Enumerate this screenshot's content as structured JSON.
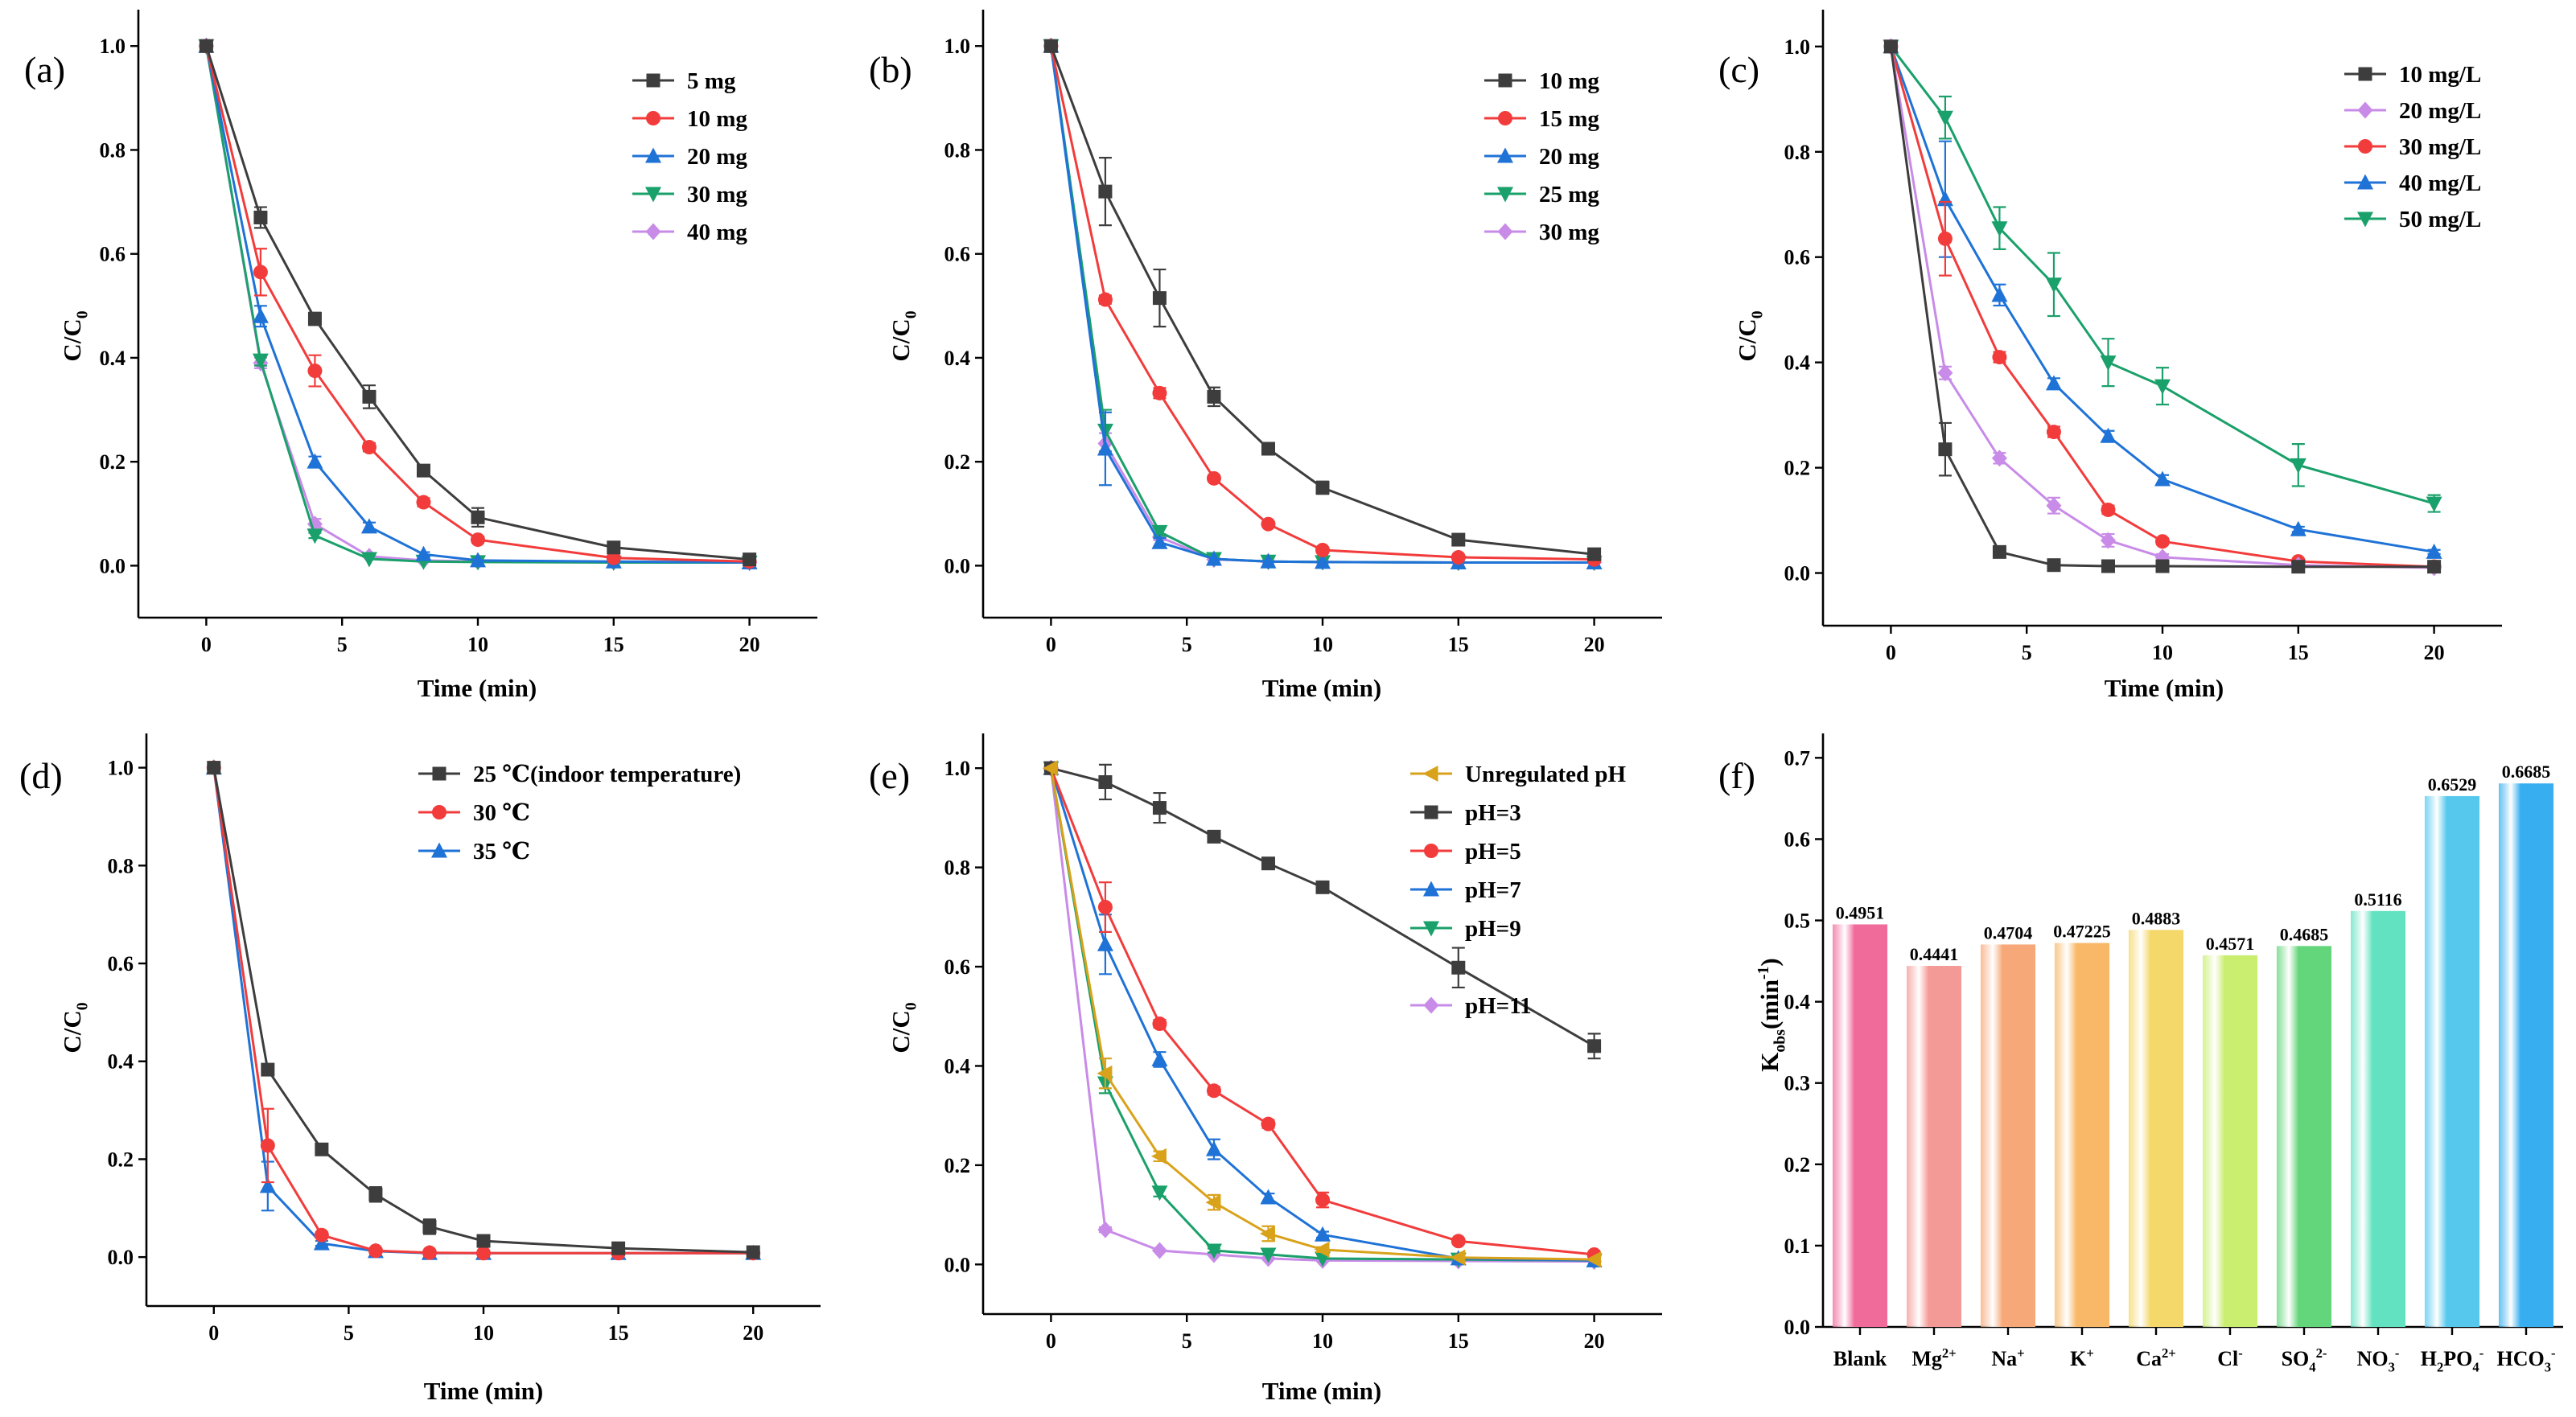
{
  "colors": {
    "black": "#3d3d3d",
    "red": "#f23c3c",
    "blue": "#1f72d6",
    "green": "#1aa06a",
    "violet": "#c88be8",
    "orange": "#d9a21b",
    "bars": [
      "#f06a9a",
      "#f49a96",
      "#f7a878",
      "#f8b868",
      "#f5d86a",
      "#c9ee70",
      "#63d57a",
      "#62e2c0",
      "#56c8ee",
      "#36aef0"
    ]
  },
  "chart_data": [
    {
      "panel": "(a)",
      "type": "line",
      "xlabel": "Time (min)",
      "ylabel": "C/C0",
      "xlim": [
        -2.5,
        22.5
      ],
      "ylim": [
        -0.1,
        1.07
      ],
      "xticks": [
        0,
        5,
        10,
        15,
        20
      ],
      "yticks": [
        0.0,
        0.2,
        0.4,
        0.6,
        0.8,
        1.0
      ],
      "x": [
        0,
        2,
        4,
        6,
        8,
        10,
        15,
        20
      ],
      "legend_position": "top-right",
      "series": [
        {
          "name": "5 mg",
          "color": "#3d3d3d",
          "marker": "square",
          "values": [
            1.0,
            0.67,
            0.475,
            0.325,
            0.183,
            0.093,
            0.035,
            0.012
          ],
          "errors": [
            0,
            0.02,
            0.012,
            0.022,
            0.01,
            0.018,
            0.005,
            0.006
          ]
        },
        {
          "name": "10 mg",
          "color": "#f23c3c",
          "marker": "circle",
          "values": [
            1.0,
            0.565,
            0.375,
            0.228,
            0.122,
            0.05,
            0.015,
            0.008
          ],
          "errors": [
            0,
            0.045,
            0.03,
            0.008,
            0.008,
            0.006,
            0.003,
            0.002
          ]
        },
        {
          "name": "20 mg",
          "color": "#1f72d6",
          "marker": "triangle-up",
          "values": [
            1.0,
            0.48,
            0.2,
            0.075,
            0.022,
            0.01,
            0.008,
            0.006
          ],
          "errors": [
            0,
            0.02,
            0.01,
            0.008,
            0.004,
            0.003,
            0.002,
            0.002
          ]
        },
        {
          "name": "30 mg",
          "color": "#1aa06a",
          "marker": "triangle-down",
          "values": [
            1.0,
            0.395,
            0.058,
            0.013,
            0.008,
            0.007,
            0.006,
            0.006
          ],
          "errors": [
            0,
            0.01,
            0.005,
            0.002,
            0.002,
            0.002,
            0.001,
            0.001
          ]
        },
        {
          "name": "40 mg",
          "color": "#c88be8",
          "marker": "diamond",
          "values": [
            1.0,
            0.39,
            0.08,
            0.018,
            0.01,
            0.008,
            0.007,
            0.006
          ],
          "errors": [
            0,
            0.01,
            0.01,
            0.003,
            0.002,
            0.002,
            0.001,
            0.001
          ]
        }
      ]
    },
    {
      "panel": "(b)",
      "type": "line",
      "xlabel": "Time (min)",
      "ylabel": "C/C0",
      "xlim": [
        -2.5,
        22.5
      ],
      "ylim": [
        -0.1,
        1.07
      ],
      "xticks": [
        0,
        5,
        10,
        15,
        20
      ],
      "yticks": [
        0.0,
        0.2,
        0.4,
        0.6,
        0.8,
        1.0
      ],
      "x": [
        0,
        2,
        4,
        6,
        8,
        10,
        15,
        20
      ],
      "legend_position": "top-right",
      "series": [
        {
          "name": "10 mg",
          "color": "#3d3d3d",
          "marker": "square",
          "values": [
            1.0,
            0.72,
            0.515,
            0.325,
            0.225,
            0.15,
            0.05,
            0.022
          ],
          "errors": [
            0,
            0.065,
            0.055,
            0.018,
            0.008,
            0.012,
            0.005,
            0.004
          ]
        },
        {
          "name": "15 mg",
          "color": "#f23c3c",
          "marker": "circle",
          "values": [
            1.0,
            0.512,
            0.332,
            0.168,
            0.08,
            0.03,
            0.016,
            0.012
          ],
          "errors": [
            0,
            0.008,
            0.01,
            0.006,
            0.004,
            0.003,
            0.002,
            0.002
          ]
        },
        {
          "name": "20 mg",
          "color": "#1f72d6",
          "marker": "triangle-up",
          "values": [
            1.0,
            0.225,
            0.045,
            0.013,
            0.008,
            0.007,
            0.006,
            0.006
          ],
          "errors": [
            0,
            0.07,
            0.008,
            0.002,
            0.002,
            0.002,
            0.001,
            0.001
          ]
        },
        {
          "name": "25 mg",
          "color": "#1aa06a",
          "marker": "triangle-down",
          "values": [
            1.0,
            0.26,
            0.065,
            0.013,
            0.008,
            0.007,
            0.006,
            0.006
          ],
          "errors": [
            0,
            0.04,
            0.008,
            0.002,
            0.002,
            0.002,
            0.001,
            0.001
          ]
        },
        {
          "name": "30 mg",
          "color": "#c88be8",
          "marker": "diamond",
          "values": [
            1.0,
            0.235,
            0.055,
            0.012,
            0.008,
            0.007,
            0.006,
            0.006
          ],
          "errors": [
            0,
            0.02,
            0.006,
            0.002,
            0.002,
            0.002,
            0.001,
            0.001
          ]
        }
      ]
    },
    {
      "panel": "(c)",
      "type": "line",
      "xlabel": "Time (min)",
      "ylabel": "C/C0",
      "xlim": [
        -2.5,
        22.5
      ],
      "ylim": [
        -0.1,
        1.07
      ],
      "xticks": [
        0,
        5,
        10,
        15,
        20
      ],
      "yticks": [
        0.0,
        0.2,
        0.4,
        0.6,
        0.8,
        1.0
      ],
      "x": [
        0,
        2,
        4,
        6,
        8,
        10,
        15,
        20
      ],
      "legend_position": "top-right",
      "series": [
        {
          "name": "10 mg/L",
          "color": "#3d3d3d",
          "marker": "square",
          "values": [
            1.0,
            0.235,
            0.04,
            0.015,
            0.013,
            0.013,
            0.012,
            0.012
          ],
          "errors": [
            0,
            0.05,
            0.006,
            0.002,
            0.002,
            0.002,
            0.002,
            0.002
          ]
        },
        {
          "name": "20 mg/L",
          "color": "#c88be8",
          "marker": "diamond",
          "values": [
            1.0,
            0.38,
            0.218,
            0.128,
            0.062,
            0.03,
            0.015,
            0.01
          ],
          "errors": [
            0,
            0.012,
            0.01,
            0.015,
            0.012,
            0.006,
            0.003,
            0.002
          ]
        },
        {
          "name": "30 mg/L",
          "color": "#f23c3c",
          "marker": "circle",
          "values": [
            1.0,
            0.635,
            0.41,
            0.268,
            0.12,
            0.06,
            0.022,
            0.012
          ],
          "errors": [
            0,
            0.07,
            0.01,
            0.01,
            0.008,
            0.006,
            0.003,
            0.002
          ]
        },
        {
          "name": "40 mg/L",
          "color": "#1f72d6",
          "marker": "triangle-up",
          "values": [
            1.0,
            0.71,
            0.528,
            0.36,
            0.26,
            0.178,
            0.083,
            0.04
          ],
          "errors": [
            0,
            0.11,
            0.02,
            0.01,
            0.01,
            0.008,
            0.005,
            0.004
          ]
        },
        {
          "name": "50 mg/L",
          "color": "#1aa06a",
          "marker": "triangle-down",
          "values": [
            1.0,
            0.865,
            0.655,
            0.548,
            0.4,
            0.355,
            0.205,
            0.132
          ],
          "errors": [
            0,
            0.04,
            0.04,
            0.06,
            0.045,
            0.035,
            0.04,
            0.016
          ]
        }
      ]
    },
    {
      "panel": "(d)",
      "type": "line",
      "xlabel": "Time (min)",
      "ylabel": "C/C0",
      "xlim": [
        -2.5,
        22.5
      ],
      "ylim": [
        -0.1,
        1.07
      ],
      "xticks": [
        0,
        5,
        10,
        15,
        20
      ],
      "yticks": [
        0.0,
        0.2,
        0.4,
        0.6,
        0.8,
        1.0
      ],
      "x": [
        0,
        2,
        4,
        6,
        8,
        10,
        15,
        20
      ],
      "legend_position": "top-right",
      "series": [
        {
          "name": "25 ℃(indoor temperature)",
          "color": "#3d3d3d",
          "marker": "square",
          "values": [
            1.0,
            0.383,
            0.22,
            0.128,
            0.062,
            0.033,
            0.018,
            0.01
          ],
          "errors": [
            0,
            0.008,
            0.008,
            0.015,
            0.015,
            0.005,
            0.003,
            0.002
          ]
        },
        {
          "name": "30 ℃",
          "color": "#f23c3c",
          "marker": "circle",
          "values": [
            1.0,
            0.228,
            0.045,
            0.013,
            0.009,
            0.008,
            0.008,
            0.008
          ],
          "errors": [
            0,
            0.075,
            0.006,
            0.002,
            0.002,
            0.002,
            0.002,
            0.002
          ]
        },
        {
          "name": "35 ℃",
          "color": "#1f72d6",
          "marker": "triangle-up",
          "values": [
            1.0,
            0.145,
            0.028,
            0.012,
            0.008,
            0.008,
            0.008,
            0.008
          ],
          "errors": [
            0,
            0.05,
            0.005,
            0.002,
            0.002,
            0.002,
            0.002,
            0.002
          ]
        }
      ]
    },
    {
      "panel": "(e)",
      "type": "line",
      "xlabel": "Time (min)",
      "ylabel": "C/C0",
      "xlim": [
        -2.5,
        22.5
      ],
      "ylim": [
        -0.1,
        1.07
      ],
      "xticks": [
        0,
        5,
        10,
        15,
        20
      ],
      "yticks": [
        0.0,
        0.2,
        0.4,
        0.6,
        0.8,
        1.0
      ],
      "x": [
        0,
        2,
        4,
        6,
        8,
        10,
        15,
        20
      ],
      "legend_position": "top-right",
      "series": [
        {
          "name": "Unregulated pH",
          "color": "#d9a21b",
          "marker": "triangle-left",
          "values": [
            1.0,
            0.385,
            0.218,
            0.125,
            0.062,
            0.03,
            0.014,
            0.01
          ],
          "errors": [
            0,
            0.03,
            0.01,
            0.015,
            0.015,
            0.005,
            0.003,
            0.002
          ]
        },
        {
          "name": "pH=3",
          "color": "#3d3d3d",
          "marker": "square",
          "values": [
            1.0,
            0.972,
            0.92,
            0.862,
            0.808,
            0.76,
            0.598,
            0.44
          ],
          "errors": [
            0,
            0.035,
            0.03,
            0.006,
            0.006,
            0.006,
            0.04,
            0.025
          ]
        },
        {
          "name": "pH=5",
          "color": "#f23c3c",
          "marker": "circle",
          "values": [
            1.0,
            0.72,
            0.485,
            0.35,
            0.283,
            0.13,
            0.047,
            0.02
          ],
          "errors": [
            0,
            0.05,
            0.008,
            0.008,
            0.008,
            0.015,
            0.005,
            0.003
          ]
        },
        {
          "name": "pH=7",
          "color": "#1f72d6",
          "marker": "triangle-up",
          "values": [
            1.0,
            0.645,
            0.413,
            0.232,
            0.135,
            0.06,
            0.012,
            0.008
          ],
          "errors": [
            0,
            0.06,
            0.015,
            0.02,
            0.008,
            0.006,
            0.002,
            0.002
          ]
        },
        {
          "name": "pH=9",
          "color": "#1aa06a",
          "marker": "triangle-down",
          "values": [
            1.0,
            0.365,
            0.145,
            0.028,
            0.02,
            0.012,
            0.01,
            0.008
          ],
          "errors": [
            0,
            0.02,
            0.008,
            0.004,
            0.003,
            0.002,
            0.002,
            0.002
          ]
        },
        {
          "name": "pH=11",
          "color": "#c88be8",
          "marker": "diamond",
          "values": [
            1.0,
            0.07,
            0.028,
            0.02,
            0.012,
            0.008,
            0.007,
            0.006
          ],
          "errors": [
            0,
            0.005,
            0.003,
            0.002,
            0.002,
            0.002,
            0.001,
            0.001
          ]
        }
      ]
    },
    {
      "panel": "(f)",
      "type": "bar",
      "xlabel": "",
      "ylabel": "Kobs(min-1)",
      "ylim": [
        0,
        0.73
      ],
      "yticks": [
        0.0,
        0.1,
        0.2,
        0.3,
        0.4,
        0.5,
        0.6,
        0.7
      ],
      "categories": [
        "Blank",
        "Mg2+",
        "Na+",
        "K+",
        "Ca2+",
        "Cl-",
        "SO42-",
        "NO3-",
        "H2PO4-",
        "HCO3-"
      ],
      "values": [
        0.4951,
        0.4441,
        0.4704,
        0.47225,
        0.4883,
        0.4571,
        0.4685,
        0.5116,
        0.6529,
        0.6685
      ],
      "value_labels": [
        "0.4951",
        "0.4441",
        "0.4704",
        "0.47225",
        "0.4883",
        "0.4571",
        "0.4685",
        "0.5116",
        "0.6529",
        "0.6685"
      ]
    }
  ]
}
